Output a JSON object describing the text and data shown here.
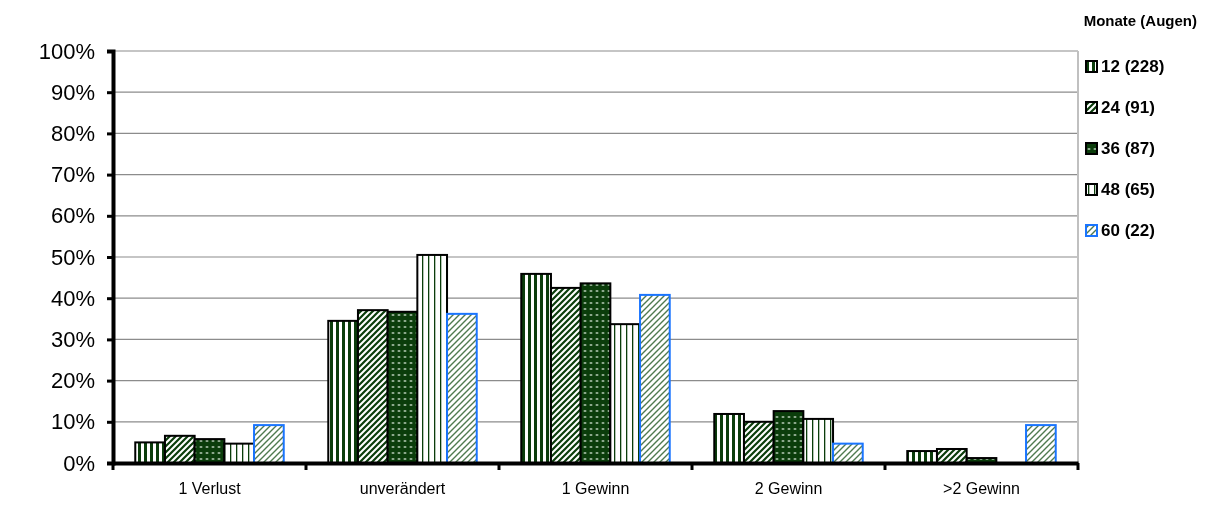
{
  "chart_data": {
    "type": "bar",
    "legend_title": "Monate (Augen)",
    "categories": [
      "1 Verlust",
      "unverändert",
      "1 Gewinn",
      "2 Gewinn",
      ">2 Gewinn"
    ],
    "series": [
      {
        "name": "12 (228)",
        "color": "#000000",
        "values": [
          5.0,
          34.5,
          45.9,
          11.9,
          2.9
        ]
      },
      {
        "name": "24 (91)",
        "color": "#000000",
        "values": [
          6.6,
          37.1,
          42.5,
          10.0,
          3.4
        ]
      },
      {
        "name": "36 (87)",
        "color": "#000000",
        "values": [
          5.8,
          36.7,
          43.6,
          12.6,
          1.2
        ]
      },
      {
        "name": "48 (65)",
        "color": "#000000",
        "values": [
          4.7,
          50.5,
          33.7,
          10.7,
          0
        ]
      },
      {
        "name": "60 (22)",
        "color": "#1a75ff",
        "values": [
          9.2,
          36.2,
          40.8,
          4.7,
          9.2
        ]
      }
    ],
    "ylim": [
      0,
      100
    ],
    "yticks": [
      {
        "value": 0,
        "label": "0%"
      },
      {
        "value": 10,
        "label": "10%"
      },
      {
        "value": 20,
        "label": "20%"
      },
      {
        "value": 30,
        "label": "30%"
      },
      {
        "value": 40,
        "label": "40%"
      },
      {
        "value": 50,
        "label": "50%"
      },
      {
        "value": 60,
        "label": "60%"
      },
      {
        "value": 70,
        "label": "70%"
      },
      {
        "value": 80,
        "label": "80%"
      },
      {
        "value": 90,
        "label": "90%"
      },
      {
        "value": 100,
        "label": "100%"
      }
    ],
    "grid": "y",
    "legend": "right"
  }
}
